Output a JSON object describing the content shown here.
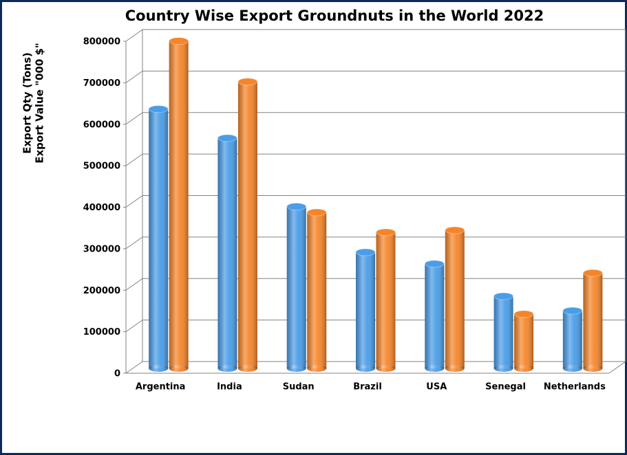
{
  "chart_data": {
    "type": "bar3d",
    "title": "Country Wise Export Groundnuts in the World 2022",
    "y_label_lines": [
      "Export Qty (Tons)",
      "Export Value \"000 $\""
    ],
    "categories": [
      "Argentina",
      "India",
      "Sudan",
      "Brazil",
      "USA",
      "Senegal",
      "Netherlands"
    ],
    "series": [
      {
        "color": "#4a9de8",
        "values": [
          625000,
          555000,
          390000,
          280000,
          252000,
          174000,
          139000
        ]
      },
      {
        "color": "#f5852a",
        "values": [
          789000,
          691000,
          376000,
          328000,
          333000,
          131000,
          230000
        ]
      }
    ],
    "ylim": [
      0,
      800000
    ],
    "yticks": [
      0,
      100000,
      200000,
      300000,
      400000,
      500000,
      600000,
      700000,
      800000
    ],
    "grid": true
  }
}
